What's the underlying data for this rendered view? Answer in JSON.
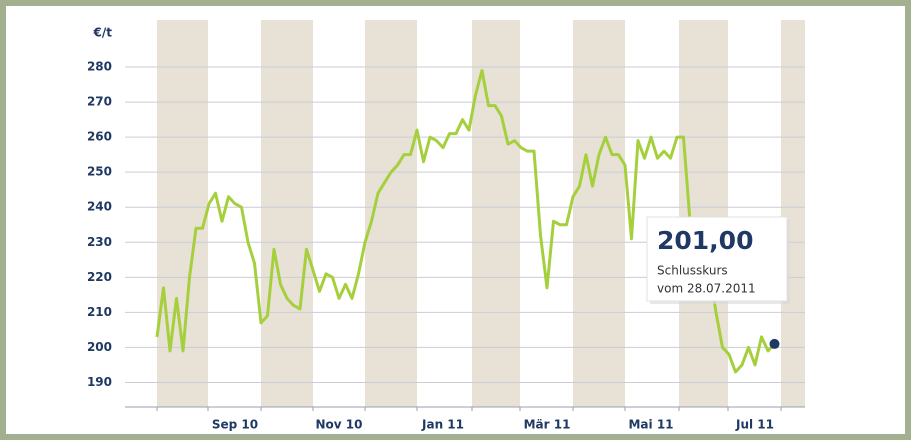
{
  "chart_data": {
    "type": "line",
    "y_label": "€/t",
    "categories": [
      null,
      null,
      null,
      null,
      null,
      null,
      null,
      null,
      null,
      null,
      null,
      null,
      "Sep 10",
      null,
      null,
      null,
      null,
      null,
      null,
      null,
      null,
      null,
      null,
      null,
      null,
      null,
      null,
      null,
      "Nov 10",
      null,
      null,
      null,
      null,
      null,
      null,
      null,
      null,
      null,
      null,
      null,
      null,
      null,
      null,
      null,
      "Jan 11",
      null,
      null,
      null,
      null,
      null,
      null,
      null,
      null,
      null,
      null,
      null,
      null,
      null,
      null,
      null,
      "Mär 11",
      null,
      null,
      null,
      null,
      null,
      null,
      null,
      null,
      null,
      null,
      null,
      null,
      null,
      null,
      null,
      "Mai 11",
      null,
      null,
      null,
      null,
      null,
      null,
      null,
      null,
      null,
      null,
      null,
      null,
      null,
      null,
      null,
      "Jul 11",
      null,
      null,
      null
    ],
    "values": [
      203,
      217,
      199,
      214,
      199,
      220,
      234,
      234,
      241,
      244,
      236,
      243,
      241,
      240,
      230,
      224,
      207,
      209,
      228,
      218,
      214,
      212,
      211,
      228,
      222,
      216,
      221,
      220,
      214,
      218,
      214,
      221,
      230,
      236,
      244,
      247,
      250,
      252,
      255,
      255,
      262,
      253,
      260,
      259,
      257,
      261,
      261,
      265,
      262,
      272,
      279,
      269,
      269,
      266,
      258,
      259,
      257,
      256,
      256,
      232,
      217,
      236,
      235,
      235,
      243,
      246,
      255,
      246,
      255,
      260,
      255,
      255,
      252,
      231,
      259,
      254,
      260,
      254,
      256,
      254,
      260,
      260,
      236,
      235,
      232,
      222,
      210,
      200,
      198,
      193,
      195,
      200,
      195,
      203,
      199,
      201
    ],
    "color": "#a6cf3e",
    "ylim": [
      183,
      290
    ],
    "yticks": [
      190,
      200,
      210,
      220,
      230,
      240,
      250,
      260,
      270,
      280
    ],
    "grid": true,
    "annotation": {
      "label": "201,00",
      "caption": "Schlusskurs",
      "date": "vom 28.07.2011"
    }
  }
}
